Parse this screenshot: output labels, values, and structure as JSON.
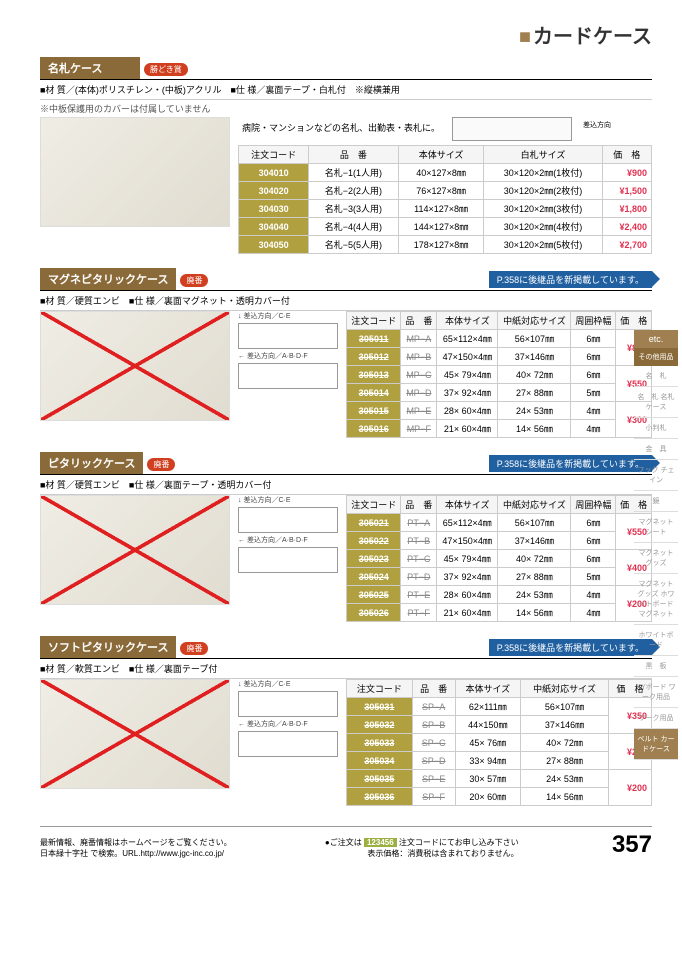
{
  "page_title": "カードケース",
  "page_number": "357",
  "sections": [
    {
      "id": "nafuda",
      "title": "名札ケース",
      "badge": "勝どき賞",
      "specs": "■材 質／(本体)ポリスチレン・(中板)アクリル　■仕 様／裏面テープ・白札付　※縦横兼用",
      "note": "※中板保護用のカバーは付属していません",
      "desc": "病院・マンションなどの名札、出勤表・表札に。",
      "has_ref": false,
      "crossed": false,
      "columns": [
        "注文コード",
        "品　番",
        "本体サイズ",
        "白札サイズ",
        "価　格"
      ],
      "rows": [
        {
          "code": "304010",
          "item": "名札−1(1人用)",
          "body": "40×127×8㎜",
          "sub": "30×120×2㎜(1枚付)",
          "price": "900"
        },
        {
          "code": "304020",
          "item": "名札−2(2人用)",
          "body": "76×127×8㎜",
          "sub": "30×120×2㎜(2枚付)",
          "price": "1,500"
        },
        {
          "code": "304030",
          "item": "名札−3(3人用)",
          "body": "114×127×8㎜",
          "sub": "30×120×2㎜(3枚付)",
          "price": "1,800"
        },
        {
          "code": "304040",
          "item": "名札−4(4人用)",
          "body": "144×127×8㎜",
          "sub": "30×120×2㎜(4枚付)",
          "price": "2,400"
        },
        {
          "code": "304050",
          "item": "名札−5(5人用)",
          "body": "178×127×8㎜",
          "sub": "30×120×2㎜(5枚付)",
          "price": "2,700"
        }
      ]
    },
    {
      "id": "magne",
      "title": "マグネピタリックケース",
      "badge": "廃番",
      "specs": "■材 質／硬質エンビ　■仕 様／裏面マグネット・透明カバー付",
      "has_ref": true,
      "ref": "P.358に後継品を新掲載しています。",
      "crossed": true,
      "columns": [
        "注文コード",
        "品　番",
        "本体サイズ",
        "中紙対応サイズ",
        "周囲枠幅",
        "価　格"
      ],
      "rows_grouped": [
        {
          "rows": [
            {
              "code": "305011",
              "item": "MP−A",
              "body": "65×112×4㎜",
              "sub": "56×107㎜",
              "frame": "6㎜"
            },
            {
              "code": "305012",
              "item": "MP−B",
              "body": "47×150×4㎜",
              "sub": "37×146㎜",
              "frame": "6㎜"
            }
          ],
          "price": "850"
        },
        {
          "rows": [
            {
              "code": "305013",
              "item": "MP−C",
              "body": "45× 79×4㎜",
              "sub": "40× 72㎜",
              "frame": "6㎜"
            },
            {
              "code": "305014",
              "item": "MP−D",
              "body": "37× 92×4㎜",
              "sub": "27× 88㎜",
              "frame": "5㎜"
            }
          ],
          "price": "550"
        },
        {
          "rows": [
            {
              "code": "305015",
              "item": "MP−E",
              "body": "28× 60×4㎜",
              "sub": "24× 53㎜",
              "frame": "4㎜"
            },
            {
              "code": "305016",
              "item": "MP−F",
              "body": "21× 60×4㎜",
              "sub": "14× 56㎜",
              "frame": "4㎜"
            }
          ],
          "price": "300"
        }
      ]
    },
    {
      "id": "pita",
      "title": "ピタリックケース",
      "badge": "廃番",
      "specs": "■材 質／硬質エンビ　■仕 様／裏面テープ・透明カバー付",
      "has_ref": true,
      "ref": "P.358に後継品を新掲載しています。",
      "crossed": true,
      "columns": [
        "注文コード",
        "品　番",
        "本体サイズ",
        "中紙対応サイズ",
        "周囲枠幅",
        "価　格"
      ],
      "rows_grouped": [
        {
          "rows": [
            {
              "code": "305021",
              "item": "PT−A",
              "body": "65×112×4㎜",
              "sub": "56×107㎜",
              "frame": "6㎜"
            },
            {
              "code": "305022",
              "item": "PT−B",
              "body": "47×150×4㎜",
              "sub": "37×146㎜",
              "frame": "6㎜"
            }
          ],
          "price": "550"
        },
        {
          "rows": [
            {
              "code": "305023",
              "item": "PT−C",
              "body": "45× 79×4㎜",
              "sub": "40× 72㎜",
              "frame": "6㎜"
            },
            {
              "code": "305024",
              "item": "PT−D",
              "body": "37× 92×4㎜",
              "sub": "27× 88㎜",
              "frame": "5㎜"
            }
          ],
          "price": "400"
        },
        {
          "rows": [
            {
              "code": "305025",
              "item": "PT−E",
              "body": "28× 60×4㎜",
              "sub": "24× 53㎜",
              "frame": "4㎜"
            },
            {
              "code": "305026",
              "item": "PT−F",
              "body": "21× 60×4㎜",
              "sub": "14× 56㎜",
              "frame": "4㎜"
            }
          ],
          "price": "200"
        }
      ]
    },
    {
      "id": "soft",
      "title": "ソフトピタリックケース",
      "badge": "廃番",
      "specs": "■材 質／軟質エンビ　■仕 様／裏面テープ付",
      "has_ref": true,
      "ref": "P.358に後継品を新掲載しています。",
      "crossed": true,
      "columns": [
        "注文コード",
        "品　番",
        "本体サイズ",
        "中紙対応サイズ",
        "価　格"
      ],
      "rows_grouped": [
        {
          "rows": [
            {
              "code": "305031",
              "item": "SP−A",
              "body": "62×111㎜",
              "sub": "56×107㎜"
            },
            {
              "code": "305032",
              "item": "SP−B",
              "body": "44×150㎜",
              "sub": "37×146㎜"
            }
          ],
          "price": "350"
        },
        {
          "rows": [
            {
              "code": "305033",
              "item": "SP−C",
              "body": "45× 76㎜",
              "sub": "40× 72㎜"
            },
            {
              "code": "305034",
              "item": "SP−D",
              "body": "33× 94㎜",
              "sub": "27× 88㎜"
            }
          ],
          "price": "250"
        },
        {
          "rows": [
            {
              "code": "305035",
              "item": "SP−E",
              "body": "30× 57㎜",
              "sub": "24× 53㎜"
            },
            {
              "code": "305036",
              "item": "SP−F",
              "body": "20× 60㎜",
              "sub": "14× 56㎜"
            }
          ],
          "price": "200"
        }
      ]
    }
  ],
  "sidebar": {
    "etc": "etc.",
    "sub": "その他用品",
    "items": [
      "名　札",
      "名　札 名札ケース",
      "小判札",
      "金　具",
      "フック チェイン",
      "鏡",
      "マグネットシート",
      "マグネットグッズ",
      "マグネットグッズ ホワイトボードマグネット",
      "ホワイトボード",
      "黒　板",
      "KYボード ワーク用品",
      "ワーク用品",
      "ベルト カードケース"
    ]
  },
  "footer": {
    "left1": "最新情報、廃番情報はホームページをご覧ください。",
    "left2": "日本緑十字社 で検索。URL.http://www.jgc-inc.co.jp/",
    "order_label": "●ご注文は",
    "order_sample": "123456",
    "order_text": "注文コードにてお申し込み下さい",
    "tax_note": "表示価格：消費税は含まれておりません。"
  }
}
